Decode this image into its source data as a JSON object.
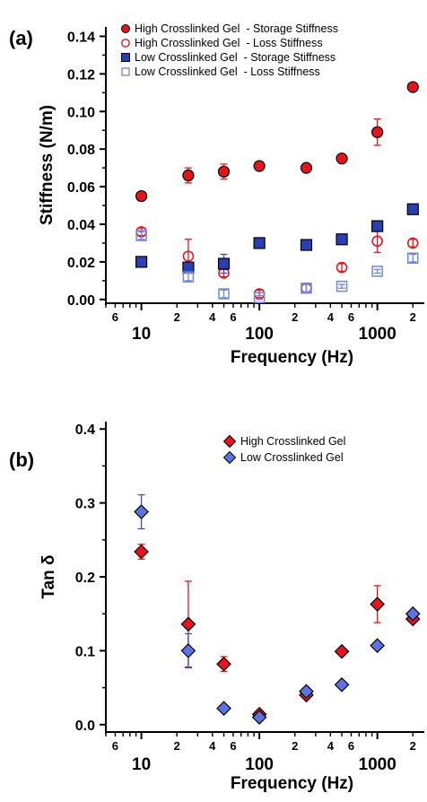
{
  "chart_data": [
    {
      "panel_label": "(a)",
      "type": "scatter",
      "xscale": "log",
      "xlabel": "Frequency (Hz)",
      "ylabel": "Stiffness (N/m)",
      "ylim": [
        -0.002,
        0.145
      ],
      "xlim": [
        5,
        2500
      ],
      "x_ticks_major": [
        "10",
        "100",
        "1000"
      ],
      "x_ticks_minor": [
        {
          "value": 6,
          "label": "6"
        },
        {
          "value": 20,
          "label": "2"
        },
        {
          "value": 40,
          "label": "4"
        },
        {
          "value": 60,
          "label": "6"
        },
        {
          "value": 200,
          "label": "2"
        },
        {
          "value": 400,
          "label": "4"
        },
        {
          "value": 600,
          "label": "6"
        },
        {
          "value": 2000,
          "label": "2"
        }
      ],
      "y_ticks": [
        "0.00",
        "0.02",
        "0.04",
        "0.06",
        "0.08",
        "0.10",
        "0.12",
        "0.14"
      ],
      "legend_placement": "top-left",
      "series": [
        {
          "name": "High Crosslinked Gel  - Storage Stiffness",
          "marker": "circle",
          "fill": "#e8141b",
          "stroke": "#000000",
          "x": [
            10,
            25,
            50,
            100,
            250,
            500,
            1000,
            2000
          ],
          "y": [
            0.055,
            0.066,
            0.068,
            0.071,
            0.07,
            0.075,
            0.089,
            0.113
          ],
          "err": [
            0.002,
            0.004,
            0.004,
            0.002,
            0.002,
            0.002,
            0.007,
            0.002
          ]
        },
        {
          "name": "High Crosslinked Gel  - Loss Stiffness",
          "marker": "circle-open",
          "fill": "none",
          "stroke": "#e8141b",
          "x": [
            10,
            25,
            50,
            100,
            250,
            500,
            1000,
            2000
          ],
          "y": [
            0.036,
            0.023,
            0.014,
            0.003,
            0.006,
            0.017,
            0.031,
            0.03
          ],
          "err": [
            0.002,
            0.009,
            0.002,
            0.002,
            0.002,
            0.002,
            0.006,
            0.002
          ]
        },
        {
          "name": "Low Crosslinked Gel  - Storage Stiffness",
          "marker": "square",
          "fill": "#2b3fb5",
          "stroke": "#000000",
          "x": [
            10,
            25,
            50,
            100,
            250,
            500,
            1000,
            2000
          ],
          "y": [
            0.02,
            0.017,
            0.019,
            0.03,
            0.029,
            0.032,
            0.039,
            0.048
          ],
          "err": [
            0.001,
            0.002,
            0.005,
            0.001,
            0.001,
            0.001,
            0.002,
            0.002
          ]
        },
        {
          "name": "Low Crosslinked Gel  - Loss Stiffness",
          "marker": "square-open",
          "fill": "none",
          "stroke": "#6f86e8",
          "x": [
            10,
            25,
            50,
            100,
            250,
            500,
            1000,
            2000
          ],
          "y": [
            0.034,
            0.012,
            0.003,
            0.001,
            0.006,
            0.007,
            0.015,
            0.022
          ],
          "err": [
            0.002,
            0.002,
            0.002,
            0.001,
            0.002,
            0.001,
            0.001,
            0.002
          ]
        }
      ]
    },
    {
      "panel_label": "(b)",
      "type": "scatter",
      "xscale": "log",
      "xlabel": "Frequency (Hz)",
      "ylabel": "Tan δ",
      "ylim": [
        -0.01,
        0.41
      ],
      "xlim": [
        5,
        2500
      ],
      "x_ticks_major": [
        "10",
        "100",
        "1000"
      ],
      "x_ticks_minor": [
        {
          "value": 6,
          "label": "6"
        },
        {
          "value": 20,
          "label": "2"
        },
        {
          "value": 40,
          "label": "4"
        },
        {
          "value": 60,
          "label": "6"
        },
        {
          "value": 200,
          "label": "2"
        },
        {
          "value": 400,
          "label": "4"
        },
        {
          "value": 600,
          "label": "6"
        },
        {
          "value": 2000,
          "label": "2"
        }
      ],
      "y_ticks": [
        "0.0",
        "0.1",
        "0.2",
        "0.3",
        "0.4"
      ],
      "legend_placement": "top-right",
      "series": [
        {
          "name": "High Crosslinked Gel",
          "marker": "diamond",
          "fill": "#e8141b",
          "stroke": "#000000",
          "x": [
            10,
            25,
            50,
            100,
            250,
            500,
            1000,
            2000
          ],
          "y": [
            0.234,
            0.136,
            0.082,
            0.014,
            0.04,
            0.099,
            0.163,
            0.143
          ],
          "err": [
            0.01,
            0.058,
            0.01,
            0.005,
            0.004,
            0.004,
            0.025,
            0.004
          ]
        },
        {
          "name": "Low Crosslinked Gel",
          "marker": "diamond",
          "fill": "#5b73e3",
          "stroke": "#000000",
          "x": [
            10,
            25,
            50,
            100,
            250,
            500,
            1000,
            2000
          ],
          "y": [
            0.288,
            0.1,
            0.022,
            0.01,
            0.045,
            0.054,
            0.107,
            0.15
          ],
          "err": [
            0.023,
            0.023,
            0.003,
            0.003,
            0.003,
            0.003,
            0.003,
            0.003
          ]
        }
      ]
    }
  ]
}
